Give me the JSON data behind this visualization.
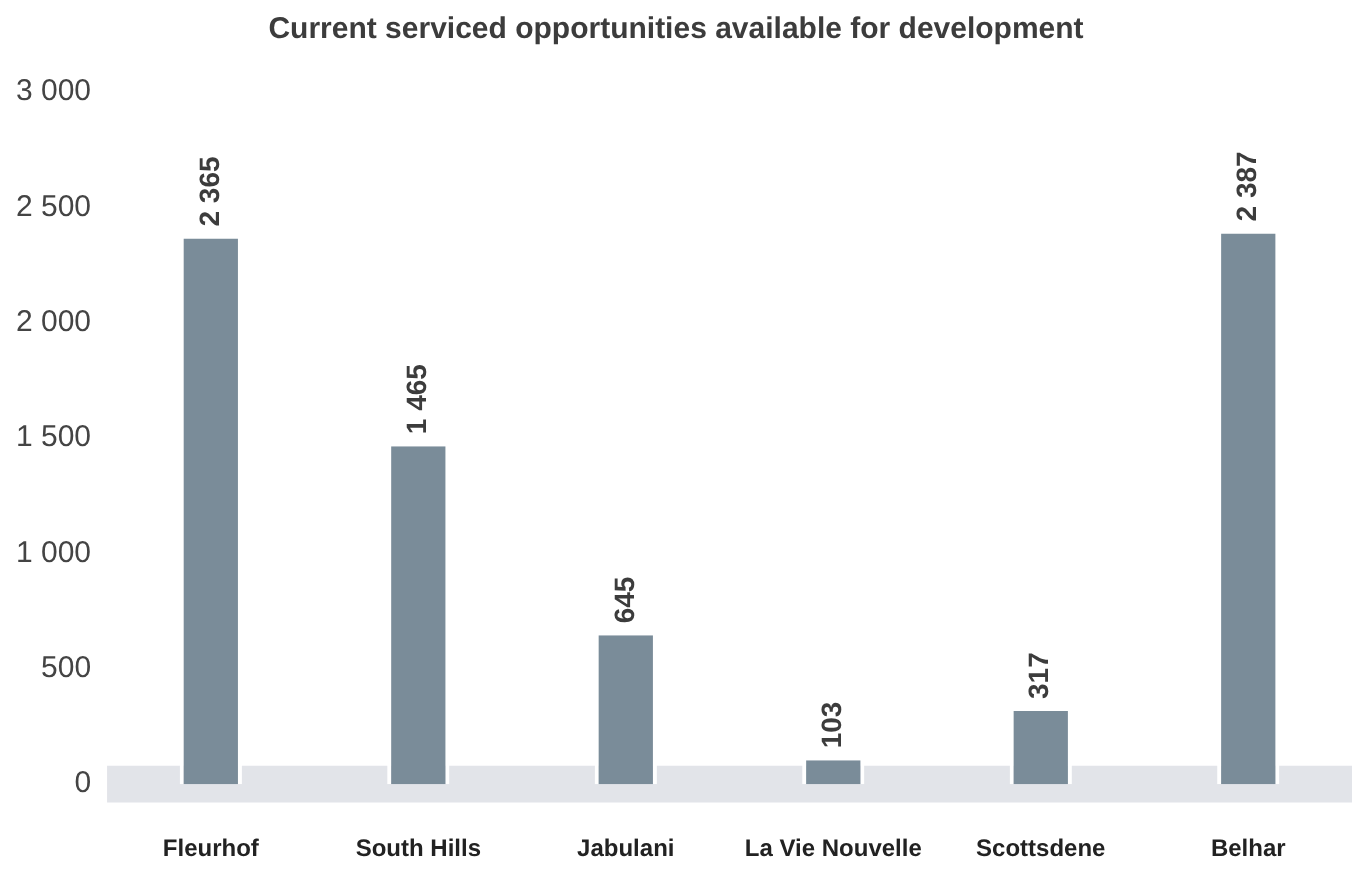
{
  "chart_data": {
    "type": "bar",
    "title": "Current serviced opportunities available for development",
    "categories": [
      "Fleurhof",
      "South Hills",
      "Jabulani",
      "La Vie Nouvelle",
      "Scottsdene",
      "Belhar"
    ],
    "values": [
      2365,
      1465,
      645,
      103,
      317,
      2387
    ],
    "value_labels": [
      "2 365",
      "1 465",
      "645",
      "103",
      "317",
      "2 387"
    ],
    "color": "#7a8c99",
    "ylim": [
      -100,
      3000
    ],
    "yticks": [
      {
        "value": 0,
        "label": "0"
      },
      {
        "value": 500,
        "label": "500"
      },
      {
        "value": 1000,
        "label": "1 000"
      },
      {
        "value": 1500,
        "label": "1 500"
      },
      {
        "value": 2000,
        "label": "2 000"
      },
      {
        "value": 2500,
        "label": "2 500"
      },
      {
        "value": 3000,
        "label": "3 000"
      }
    ],
    "bands": [
      {
        "axis": "y",
        "from": -80,
        "to": 80,
        "color": "#e2e4e9"
      }
    ],
    "grid": false,
    "legend": false
  }
}
